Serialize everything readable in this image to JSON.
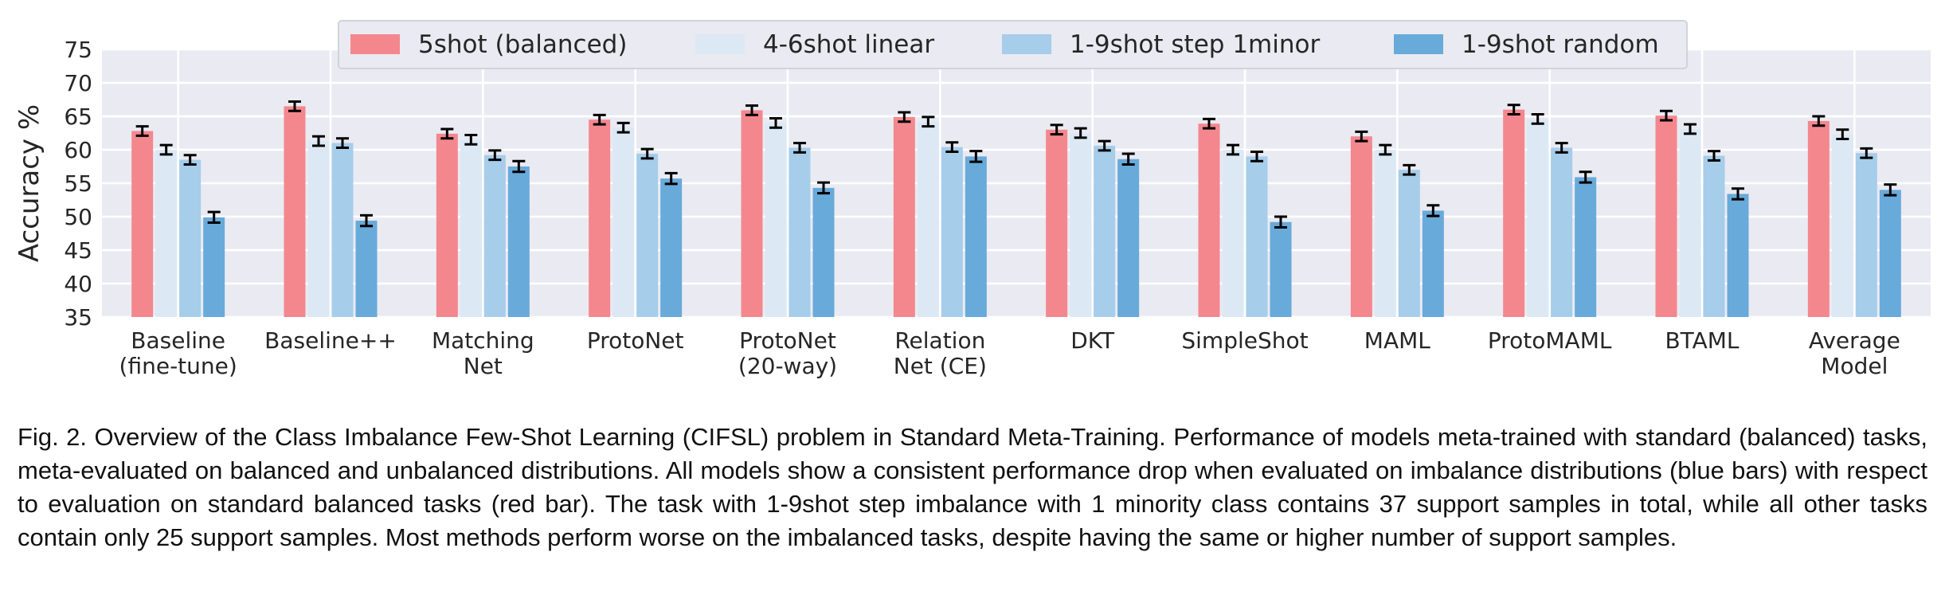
{
  "chart_data": {
    "type": "bar",
    "title": "",
    "xlabel": "",
    "ylabel": "Accuracy %",
    "ylim": [
      35,
      75
    ],
    "yticks": [
      35,
      40,
      45,
      50,
      55,
      60,
      65,
      70,
      75
    ],
    "grid": true,
    "legend_position": "top-center",
    "categories": [
      [
        "Baseline",
        "(fine-tune)"
      ],
      [
        "Baseline++"
      ],
      [
        "Matching",
        "Net"
      ],
      [
        "ProtoNet"
      ],
      [
        "ProtoNet",
        "(20-way)"
      ],
      [
        "Relation",
        "Net (CE)"
      ],
      [
        "DKT"
      ],
      [
        "SimpleShot"
      ],
      [
        "MAML"
      ],
      [
        "ProtoMAML"
      ],
      [
        "BTAML"
      ],
      [
        "Average",
        "Model"
      ]
    ],
    "series": [
      {
        "name": "5shot (balanced)",
        "color": "#f4878e",
        "values": [
          62.8,
          66.5,
          62.4,
          64.5,
          65.9,
          64.9,
          63.0,
          63.9,
          62.0,
          66.0,
          65.1,
          64.3
        ],
        "errors": [
          0.7,
          0.7,
          0.7,
          0.7,
          0.7,
          0.7,
          0.7,
          0.7,
          0.7,
          0.7,
          0.7,
          0.7
        ]
      },
      {
        "name": "4-6shot linear",
        "color": "#dce9f5",
        "values": [
          60.0,
          61.3,
          61.5,
          63.3,
          64.0,
          64.2,
          62.5,
          60.0,
          60.0,
          64.6,
          63.1,
          62.3
        ],
        "errors": [
          0.7,
          0.7,
          0.7,
          0.7,
          0.7,
          0.7,
          0.7,
          0.7,
          0.7,
          0.7,
          0.7,
          0.7
        ]
      },
      {
        "name": "1-9shot step 1minor",
        "color": "#a6cdea",
        "values": [
          58.5,
          61.0,
          59.2,
          59.4,
          60.3,
          60.4,
          60.6,
          59.0,
          57.0,
          60.3,
          59.1,
          59.5
        ],
        "errors": [
          0.7,
          0.7,
          0.7,
          0.7,
          0.7,
          0.7,
          0.7,
          0.7,
          0.7,
          0.7,
          0.7,
          0.7
        ]
      },
      {
        "name": "1-9shot random",
        "color": "#68aada",
        "values": [
          49.9,
          49.4,
          57.5,
          55.7,
          54.3,
          59.0,
          58.6,
          49.2,
          50.9,
          55.9,
          53.4,
          54.0
        ],
        "errors": [
          0.8,
          0.8,
          0.8,
          0.8,
          0.8,
          0.8,
          0.8,
          0.8,
          0.8,
          0.8,
          0.8,
          0.8
        ]
      }
    ]
  },
  "caption": "Fig. 2. Overview of the Class Imbalance Few-Shot Learning (CIFSL) problem in Standard Meta-Training. Performance of models meta-trained with standard (balanced) tasks, meta-evaluated on balanced and unbalanced distributions. All models show a consistent performance drop when evaluated on imbalance distributions (blue bars) with respect to evaluation on standard balanced tasks (red bar). The task with 1-9shot step imbalance with 1 minority class contains 37 support samples in total, while all other tasks contain only 25 support samples. Most methods perform worse on the imbalanced tasks, despite having the same or higher number of support samples."
}
